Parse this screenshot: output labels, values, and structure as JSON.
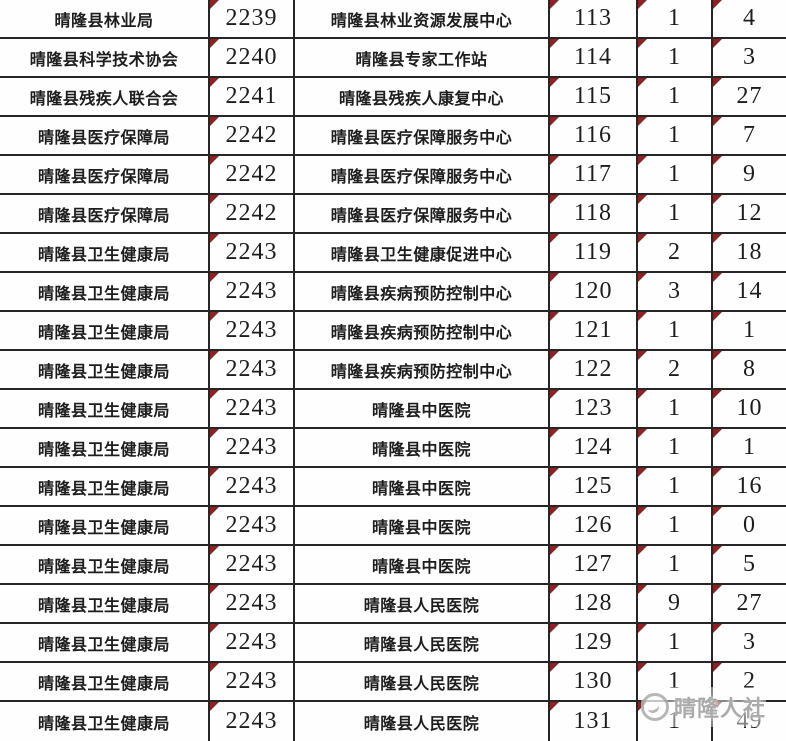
{
  "colors": {
    "border": "#262626",
    "text": "#1d1d1d",
    "triangle": "#8c2222",
    "watermark": "#ababab"
  },
  "watermark": {
    "text": "晴隆人社",
    "logo": "bird-circle-logo"
  },
  "table": {
    "marker_columns": [
      1,
      3,
      4,
      5
    ],
    "rows": [
      [
        "晴隆县林业局",
        "2239",
        "晴隆县林业资源发展中心",
        "113",
        "1",
        "4"
      ],
      [
        "晴隆县科学技术协会",
        "2240",
        "晴隆县专家工作站",
        "114",
        "1",
        "3"
      ],
      [
        "晴隆县残疾人联合会",
        "2241",
        "晴隆县残疾人康复中心",
        "115",
        "1",
        "27"
      ],
      [
        "晴隆县医疗保障局",
        "2242",
        "晴隆县医疗保障服务中心",
        "116",
        "1",
        "7"
      ],
      [
        "晴隆县医疗保障局",
        "2242",
        "晴隆县医疗保障服务中心",
        "117",
        "1",
        "9"
      ],
      [
        "晴隆县医疗保障局",
        "2242",
        "晴隆县医疗保障服务中心",
        "118",
        "1",
        "12"
      ],
      [
        "晴隆县卫生健康局",
        "2243",
        "晴隆县卫生健康促进中心",
        "119",
        "2",
        "18"
      ],
      [
        "晴隆县卫生健康局",
        "2243",
        "晴隆县疾病预防控制中心",
        "120",
        "3",
        "14"
      ],
      [
        "晴隆县卫生健康局",
        "2243",
        "晴隆县疾病预防控制中心",
        "121",
        "1",
        "1"
      ],
      [
        "晴隆县卫生健康局",
        "2243",
        "晴隆县疾病预防控制中心",
        "122",
        "2",
        "8"
      ],
      [
        "晴隆县卫生健康局",
        "2243",
        "晴隆县中医院",
        "123",
        "1",
        "10"
      ],
      [
        "晴隆县卫生健康局",
        "2243",
        "晴隆县中医院",
        "124",
        "1",
        "1"
      ],
      [
        "晴隆县卫生健康局",
        "2243",
        "晴隆县中医院",
        "125",
        "1",
        "16"
      ],
      [
        "晴隆县卫生健康局",
        "2243",
        "晴隆县中医院",
        "126",
        "1",
        "0"
      ],
      [
        "晴隆县卫生健康局",
        "2243",
        "晴隆县中医院",
        "127",
        "1",
        "5"
      ],
      [
        "晴隆县卫生健康局",
        "2243",
        "晴隆县人民医院",
        "128",
        "9",
        "27"
      ],
      [
        "晴隆县卫生健康局",
        "2243",
        "晴隆县人民医院",
        "129",
        "1",
        "3"
      ],
      [
        "晴隆县卫生健康局",
        "2243",
        "晴隆县人民医院",
        "130",
        "1",
        "2"
      ],
      [
        "晴隆县卫生健康局",
        "2243",
        "晴隆县人民医院",
        "131",
        "1",
        "49"
      ]
    ]
  }
}
